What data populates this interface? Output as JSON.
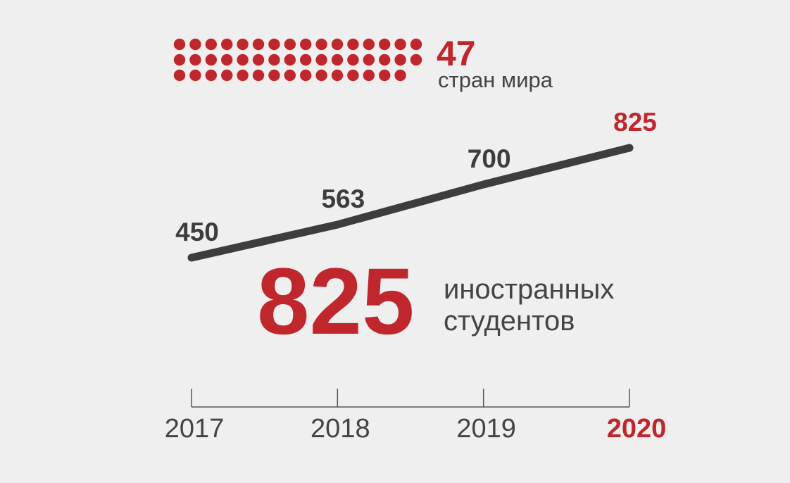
{
  "chart_data": {
    "type": "line",
    "categories": [
      "2017",
      "2018",
      "2019",
      "2020"
    ],
    "values": [
      450,
      563,
      700,
      825
    ],
    "color": "#3d3d3d",
    "highlight_color": "#c0272d",
    "axis_color": "#555555"
  },
  "countries": {
    "value": 47,
    "label": "стран мира",
    "color": "#c0272d"
  },
  "students": {
    "value": 825,
    "label_lines": [
      "иностранных",
      "студентов"
    ],
    "color": "#c0272d"
  }
}
